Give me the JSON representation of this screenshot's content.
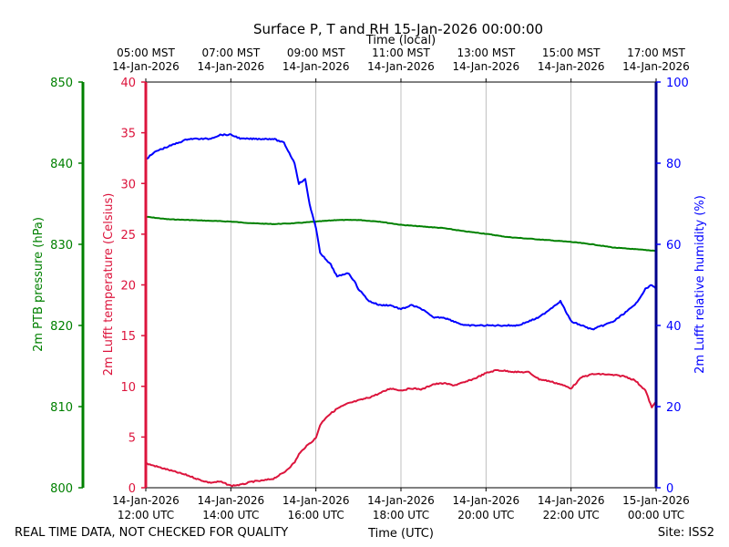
{
  "chart_data": {
    "type": "line",
    "title": "Surface P, T and RH 15-Jan-2026 00:00:00",
    "xlabel_bottom": "Time (UTC)",
    "xlabel_top": "Time (local)",
    "x_ticks_bottom": [
      [
        "14-Jan-2026",
        "12:00 UTC"
      ],
      [
        "14-Jan-2026",
        "14:00 UTC"
      ],
      [
        "14-Jan-2026",
        "16:00 UTC"
      ],
      [
        "14-Jan-2026",
        "18:00 UTC"
      ],
      [
        "14-Jan-2026",
        "20:00 UTC"
      ],
      [
        "14-Jan-2026",
        "22:00 UTC"
      ],
      [
        "15-Jan-2026",
        "00:00 UTC"
      ]
    ],
    "x_ticks_top": [
      [
        "05:00 MST",
        "14-Jan-2026"
      ],
      [
        "07:00 MST",
        "14-Jan-2026"
      ],
      [
        "09:00 MST",
        "14-Jan-2026"
      ],
      [
        "11:00 MST",
        "14-Jan-2026"
      ],
      [
        "13:00 MST",
        "14-Jan-2026"
      ],
      [
        "15:00 MST",
        "14-Jan-2026"
      ],
      [
        "17:00 MST",
        "14-Jan-2026"
      ]
    ],
    "x_hours_utc": [
      12,
      14,
      16,
      18,
      20,
      22,
      24
    ],
    "xlim_hours_utc": [
      12,
      24
    ],
    "grid": "vertical",
    "axes": {
      "pressure": {
        "label": "2m PTB pressure (hPa)",
        "ylim": [
          800,
          850
        ],
        "ticks": [
          800,
          810,
          820,
          830,
          840,
          850
        ],
        "color": "#008000"
      },
      "temperature": {
        "label": "2m Lufft temperature (Celsius)",
        "ylim": [
          0,
          40
        ],
        "ticks": [
          0,
          5,
          10,
          15,
          20,
          25,
          30,
          35,
          40
        ],
        "color": "#dc143c"
      },
      "humidity": {
        "label": "2m Lufft relative humidity (%)",
        "ylim": [
          0,
          100
        ],
        "ticks": [
          0,
          20,
          40,
          60,
          80,
          100
        ],
        "color": "#0000ff"
      }
    },
    "series": [
      {
        "axis": "pressure",
        "color": "#008000",
        "x": [
          12.0,
          12.5,
          13.0,
          13.5,
          14.0,
          14.5,
          15.0,
          15.5,
          16.0,
          16.5,
          17.0,
          17.5,
          18.0,
          18.5,
          19.0,
          19.5,
          20.0,
          20.5,
          21.0,
          21.5,
          22.0,
          22.5,
          23.0,
          23.5,
          24.0
        ],
        "y": [
          833.4,
          833.1,
          833.0,
          832.9,
          832.8,
          832.6,
          832.5,
          832.6,
          832.8,
          833.0,
          833.0,
          832.8,
          832.4,
          832.2,
          832.0,
          831.6,
          831.3,
          830.9,
          830.7,
          830.5,
          830.3,
          830.0,
          829.6,
          829.4,
          829.2
        ]
      },
      {
        "axis": "temperature",
        "color": "#dc143c",
        "x": [
          12.0,
          12.25,
          12.5,
          12.75,
          13.0,
          13.25,
          13.5,
          13.75,
          14.0,
          14.25,
          14.5,
          14.75,
          15.0,
          15.25,
          15.5,
          15.6,
          15.75,
          16.0,
          16.1,
          16.25,
          16.5,
          16.75,
          17.0,
          17.25,
          17.5,
          17.75,
          18.0,
          18.25,
          18.5,
          18.75,
          19.0,
          19.25,
          19.5,
          19.75,
          20.0,
          20.25,
          20.5,
          20.75,
          21.0,
          21.25,
          21.5,
          21.75,
          22.0,
          22.25,
          22.5,
          22.75,
          23.0,
          23.25,
          23.5,
          23.75,
          23.9,
          24.0
        ],
        "y": [
          2.4,
          2.1,
          1.8,
          1.5,
          1.2,
          0.8,
          0.5,
          0.6,
          0.2,
          0.3,
          0.6,
          0.7,
          0.9,
          1.5,
          2.5,
          3.3,
          4.0,
          4.9,
          6.2,
          7.0,
          7.8,
          8.3,
          8.6,
          8.9,
          9.3,
          9.8,
          9.6,
          9.8,
          9.7,
          10.2,
          10.3,
          10.1,
          10.4,
          10.8,
          11.3,
          11.6,
          11.5,
          11.4,
          11.4,
          10.7,
          10.5,
          10.2,
          9.8,
          10.9,
          11.2,
          11.2,
          11.1,
          11.0,
          10.6,
          9.6,
          7.9,
          8.5
        ]
      },
      {
        "axis": "humidity",
        "color": "#0000ff",
        "x": [
          12.0,
          12.25,
          12.5,
          12.75,
          13.0,
          13.25,
          13.5,
          13.75,
          14.0,
          14.25,
          14.5,
          14.75,
          15.0,
          15.25,
          15.5,
          15.6,
          15.75,
          15.85,
          15.95,
          16.0,
          16.1,
          16.25,
          16.35,
          16.5,
          16.75,
          16.9,
          17.0,
          17.25,
          17.5,
          17.75,
          18.0,
          18.25,
          18.5,
          18.75,
          19.0,
          19.25,
          19.5,
          19.75,
          20.0,
          20.25,
          20.5,
          20.75,
          21.0,
          21.25,
          21.5,
          21.75,
          21.9,
          22.0,
          22.25,
          22.5,
          22.75,
          23.0,
          23.25,
          23.5,
          23.75,
          23.9,
          24.0
        ],
        "y": [
          81,
          83,
          84,
          85,
          86,
          86,
          86,
          87,
          87,
          86,
          86,
          86,
          86,
          85,
          80,
          75,
          76,
          70,
          66,
          64,
          58,
          56,
          55,
          52,
          53,
          51,
          49,
          46,
          45,
          45,
          44,
          45,
          44,
          42,
          42,
          41,
          40,
          40,
          40,
          40,
          40,
          40,
          41,
          42,
          44,
          46,
          43,
          41,
          40,
          39,
          40,
          41,
          43,
          45,
          49,
          50,
          49
        ]
      }
    ]
  },
  "footer": {
    "left": "REAL TIME DATA, NOT CHECKED FOR QUALITY",
    "right": "Site: ISS2"
  }
}
